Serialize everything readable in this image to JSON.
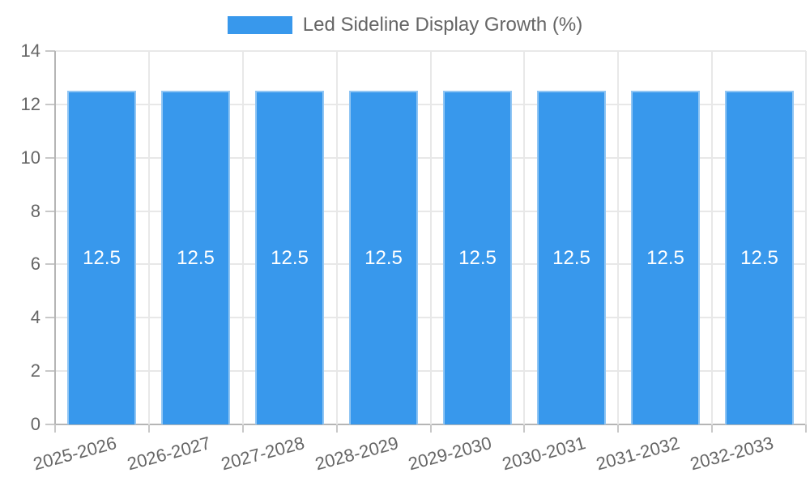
{
  "legend": {
    "label": "Led Sideline Display Growth (%)"
  },
  "chart_data": {
    "type": "bar",
    "title": "Led Sideline Display Growth (%)",
    "categories": [
      "2025-2026",
      "2026-2027",
      "2027-2028",
      "2028-2029",
      "2029-2030",
      "2030-2031",
      "2031-2032",
      "2032-2033"
    ],
    "series": [
      {
        "name": "Led Sideline Display Growth (%)",
        "values": [
          12.5,
          12.5,
          12.5,
          12.5,
          12.5,
          12.5,
          12.5,
          12.5
        ]
      }
    ],
    "values": [
      12.5,
      12.5,
      12.5,
      12.5,
      12.5,
      12.5,
      12.5,
      12.5
    ],
    "bar_value_labels": [
      "12.5",
      "12.5",
      "12.5",
      "12.5",
      "12.5",
      "12.5",
      "12.5",
      "12.5"
    ],
    "xlabel": "",
    "ylabel": "",
    "ylim": [
      0,
      14
    ],
    "yticks": [
      0,
      2,
      4,
      6,
      8,
      10,
      12,
      14
    ],
    "grid": true,
    "legend_position": "top",
    "colors": {
      "bar": "#3898ec",
      "grid": "#e8e8e8",
      "axis": "#b5b5b5",
      "tick": "#c8c8c8",
      "text": "#666666",
      "value_label": "#ffffff"
    }
  }
}
